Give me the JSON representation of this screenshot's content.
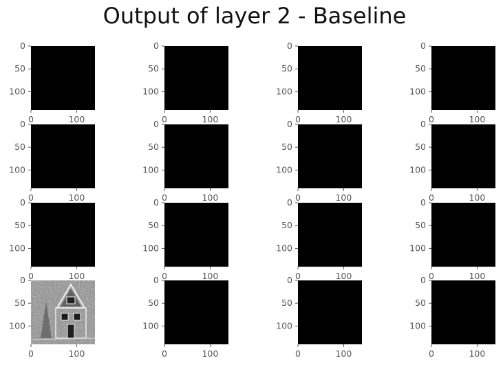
{
  "title": "Output of layer 2 - Baseline",
  "chart_data": {
    "type": "heatmap",
    "title": "Output of layer 2 - Baseline",
    "grid_shape": [
      4,
      4
    ],
    "image_extent": [
      0,
      140
    ],
    "colormap": "gray",
    "panels_per_row": 4,
    "x_ticks": [
      0,
      100
    ],
    "y_ticks": [
      0,
      50,
      100
    ],
    "panels": [
      {
        "index": 1,
        "content": "black"
      },
      {
        "index": 2,
        "content": "black"
      },
      {
        "index": 3,
        "content": "black"
      },
      {
        "index": 4,
        "content": "black"
      },
      {
        "index": 5,
        "content": "black"
      },
      {
        "index": 6,
        "content": "black"
      },
      {
        "index": 7,
        "content": "black"
      },
      {
        "index": 8,
        "content": "black"
      },
      {
        "index": 9,
        "content": "black"
      },
      {
        "index": 10,
        "content": "black"
      },
      {
        "index": 11,
        "content": "black"
      },
      {
        "index": 12,
        "content": "black"
      },
      {
        "index": 13,
        "content": "grayscale edge-detected house"
      },
      {
        "index": 14,
        "content": "black"
      },
      {
        "index": 15,
        "content": "black"
      },
      {
        "index": 16,
        "content": "black"
      }
    ],
    "colors": {
      "empty_panel": "#000000",
      "tick_color": "#555555",
      "title_color": "#111111"
    }
  }
}
